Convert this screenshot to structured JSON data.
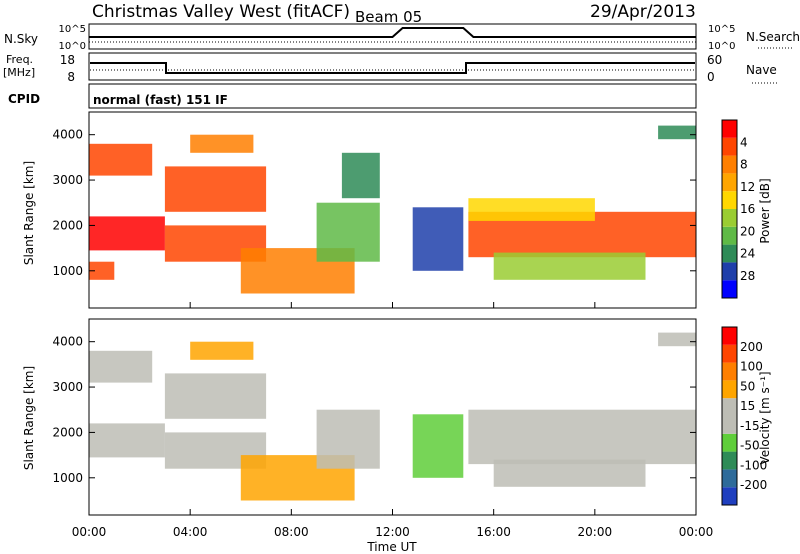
{
  "header": {
    "title": "Christmas Valley West (fitACF)",
    "beam": "Beam 05",
    "date": "29/Apr/2013"
  },
  "panels": {
    "nsky": {
      "label": "N.Sky",
      "tick_top": "10^5",
      "tick_bottom": "10^0",
      "right_label": "N.Search",
      "right_tick_top": "10^5",
      "right_tick_bottom": "10^0"
    },
    "freq": {
      "label_line1": "Freq.",
      "label_line2": "[MHz]",
      "tick_top": "18",
      "tick_bottom": "8",
      "right_label": "Nave",
      "right_tick_top": "60",
      "right_tick_bottom": "0"
    },
    "cpid": {
      "label": "CPID",
      "text": "normal (fast) 151 IF"
    }
  },
  "chart_data": [
    {
      "type": "heatmap",
      "name": "power",
      "xlabel": "",
      "ylabel": "Slant Range [km]",
      "xlim": [
        0,
        24
      ],
      "ylim": [
        180,
        4500
      ],
      "yticks": [
        1000,
        2000,
        3000,
        4000
      ],
      "colorbar": {
        "label": "Power [dB]",
        "ticks": [
          "4",
          "8",
          "12",
          "16",
          "20",
          "24",
          "28"
        ],
        "colors": [
          "#0000ff",
          "#1f3faa",
          "#2e8b57",
          "#5fba46",
          "#9acd32",
          "#ffd700",
          "#ffa500",
          "#ff7f00",
          "#ff4500",
          "#ff0000"
        ]
      },
      "regions": [
        {
          "t0": 0.0,
          "t1": 3.0,
          "r0": 1450,
          "r1": 2200,
          "level": 0.95
        },
        {
          "t0": 0.0,
          "t1": 2.5,
          "r0": 3100,
          "r1": 3800,
          "level": 0.85
        },
        {
          "t0": 0.0,
          "t1": 1.0,
          "r0": 800,
          "r1": 1200,
          "level": 0.9
        },
        {
          "t0": 3.0,
          "t1": 7.0,
          "r0": 1200,
          "r1": 2000,
          "level": 0.92
        },
        {
          "t0": 3.0,
          "t1": 7.0,
          "r0": 2300,
          "r1": 3300,
          "level": 0.88
        },
        {
          "t0": 4.0,
          "t1": 6.5,
          "r0": 3600,
          "r1": 4000,
          "level": 0.75
        },
        {
          "t0": 6.0,
          "t1": 10.5,
          "r0": 500,
          "r1": 1500,
          "level": 0.8
        },
        {
          "t0": 9.0,
          "t1": 11.5,
          "r0": 1200,
          "r1": 2500,
          "level": 0.3
        },
        {
          "t0": 10.0,
          "t1": 11.5,
          "r0": 2600,
          "r1": 3600,
          "level": 0.2
        },
        {
          "t0": 12.8,
          "t1": 14.8,
          "r0": 1000,
          "r1": 2400,
          "level": 0.15
        },
        {
          "t0": 15.0,
          "t1": 24.0,
          "r0": 1300,
          "r1": 2300,
          "level": 0.93
        },
        {
          "t0": 15.0,
          "t1": 20.0,
          "r0": 2100,
          "r1": 2600,
          "level": 0.55
        },
        {
          "t0": 16.0,
          "t1": 22.0,
          "r0": 800,
          "r1": 1400,
          "level": 0.45
        },
        {
          "t0": 22.5,
          "t1": 24.0,
          "r0": 3900,
          "r1": 4200,
          "level": 0.2
        }
      ]
    },
    {
      "type": "heatmap",
      "name": "velocity",
      "xlabel": "Time UT",
      "ylabel": "Slant Range [km]",
      "xlim": [
        0,
        24
      ],
      "ylim": [
        180,
        4500
      ],
      "yticks": [
        1000,
        2000,
        3000,
        4000
      ],
      "xticks": [
        "00:00",
        "04:00",
        "08:00",
        "12:00",
        "16:00",
        "20:00",
        "00:00"
      ],
      "colorbar": {
        "label": "Velocity [m s⁻¹]",
        "ticks": [
          "200",
          "100",
          "50",
          "15",
          "-15",
          "-50",
          "-100",
          "-200"
        ],
        "colors": [
          "#1f3fbf",
          "#2e6b9a",
          "#2e8b57",
          "#5fce3a",
          "#bdbdb5",
          "#bdbdb5",
          "#ffa500",
          "#ff7f00",
          "#ff4500",
          "#ff0000"
        ]
      },
      "regions": [
        {
          "t0": 0.0,
          "t1": 3.0,
          "r0": 1450,
          "r1": 2200,
          "level": 0.45
        },
        {
          "t0": 0.0,
          "t1": 2.5,
          "r0": 3100,
          "r1": 3800,
          "level": 0.45
        },
        {
          "t0": 3.0,
          "t1": 7.0,
          "r0": 1200,
          "r1": 2000,
          "level": 0.45
        },
        {
          "t0": 3.0,
          "t1": 7.0,
          "r0": 2300,
          "r1": 3300,
          "level": 0.6
        },
        {
          "t0": 4.0,
          "t1": 6.5,
          "r0": 3600,
          "r1": 4000,
          "level": 0.65
        },
        {
          "t0": 6.0,
          "t1": 10.5,
          "r0": 500,
          "r1": 1500,
          "level": 0.62
        },
        {
          "t0": 9.0,
          "t1": 11.5,
          "r0": 1200,
          "r1": 2500,
          "level": 0.45
        },
        {
          "t0": 12.8,
          "t1": 14.8,
          "r0": 1000,
          "r1": 2400,
          "level": 0.32
        },
        {
          "t0": 15.0,
          "t1": 24.0,
          "r0": 1300,
          "r1": 2500,
          "level": 0.45
        },
        {
          "t0": 16.0,
          "t1": 22.0,
          "r0": 800,
          "r1": 1400,
          "level": 0.5
        },
        {
          "t0": 22.5,
          "t1": 24.0,
          "r0": 3900,
          "r1": 4200,
          "level": 0.45
        }
      ]
    }
  ]
}
